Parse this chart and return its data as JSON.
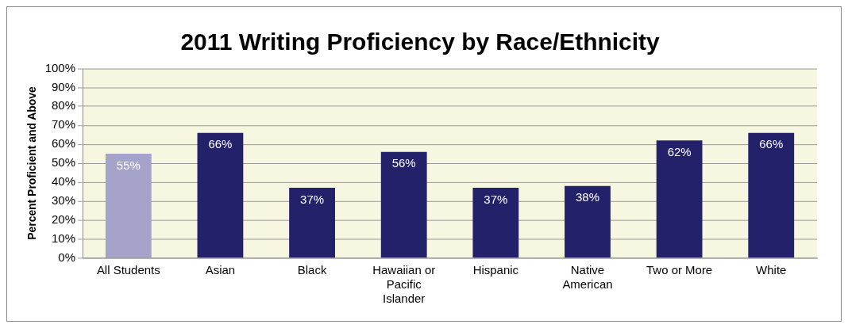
{
  "chart_data": {
    "type": "bar",
    "title": "2011 Writing Proficiency by Race/Ethnicity",
    "ylabel": "Percent Proficient and Above",
    "categories": [
      "All Students",
      "Asian",
      "Black",
      "Hawaiian or Pacific Islander",
      "Hispanic",
      "Native American",
      "Two or More",
      "White"
    ],
    "values": [
      55,
      66,
      37,
      56,
      37,
      38,
      62,
      66
    ],
    "colors": [
      "#a5a3c9",
      "#24216b",
      "#24216b",
      "#24216b",
      "#24216b",
      "#24216b",
      "#24216b",
      "#24216b"
    ],
    "value_labels": [
      "55%",
      "66%",
      "37%",
      "56%",
      "37%",
      "38%",
      "62%",
      "66%"
    ],
    "ylim": [
      0,
      100
    ],
    "yticks": [
      {
        "value": 0,
        "label": "0%"
      },
      {
        "value": 10,
        "label": "10%"
      },
      {
        "value": 20,
        "label": "20%"
      },
      {
        "value": 30,
        "label": "30%"
      },
      {
        "value": 40,
        "label": "40%"
      },
      {
        "value": 50,
        "label": "50%"
      },
      {
        "value": 60,
        "label": "60%"
      },
      {
        "value": 70,
        "label": "70%"
      },
      {
        "value": 80,
        "label": "80%"
      },
      {
        "value": 90,
        "label": "90%"
      },
      {
        "value": 100,
        "label": "100%"
      }
    ],
    "grid": "y",
    "legend": false
  }
}
